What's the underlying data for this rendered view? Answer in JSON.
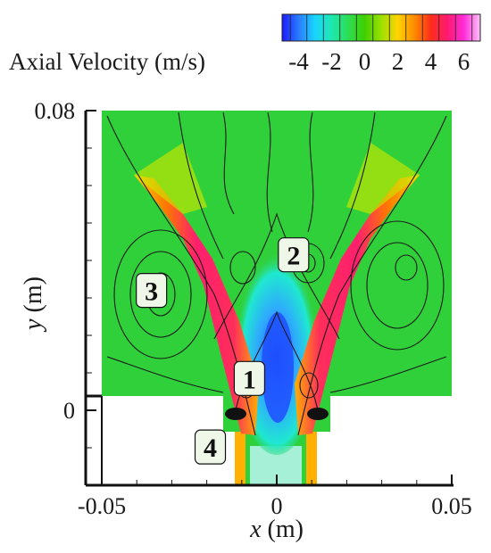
{
  "chart_data": {
    "type": "contour",
    "colorbar": {
      "title": "Axial Velocity (m/s)",
      "ticks": [
        "-4",
        "-2",
        "0",
        "2",
        "4",
        "6"
      ],
      "range": [
        -5,
        7
      ],
      "colors": [
        "#1a1aff",
        "#2b7bff",
        "#19d5ff",
        "#1fe8b0",
        "#2cdd55",
        "#3fcf00",
        "#9be000",
        "#ffd400",
        "#ff8c00",
        "#ff2e1a",
        "#ff1a6e",
        "#ff2bd9",
        "#ffc4f7"
      ]
    },
    "x_axis": {
      "label_var": "x",
      "label_unit": " (m)",
      "ticks": [
        "-0.05",
        "0",
        "0.05"
      ],
      "range": [
        -0.05,
        0.05
      ]
    },
    "y_axis": {
      "label_var": "y",
      "label_unit": " (m)",
      "ticks": [
        "0.08",
        "0"
      ],
      "range": [
        -0.02,
        0.08
      ]
    },
    "annotations": [
      {
        "text": "1",
        "x": -0.0078,
        "y": 0.0085
      },
      {
        "text": "2",
        "x": 0.0048,
        "y": 0.0415
      },
      {
        "text": "3",
        "x": -0.0358,
        "y": 0.032
      },
      {
        "text": "4",
        "x": -0.019,
        "y": -0.0098
      }
    ],
    "field": {
      "background": "#30d03a",
      "jet_core": "#ff1f6e",
      "jet_edge": "#ffd400",
      "center": "#1e7bff",
      "center_mid": "#1fe8d0"
    }
  }
}
